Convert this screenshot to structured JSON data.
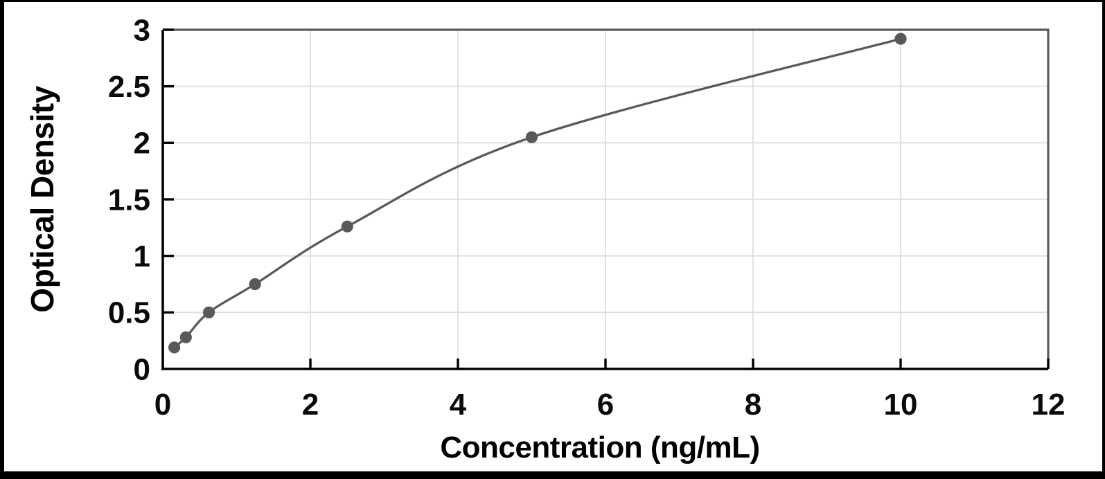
{
  "chart_data": {
    "type": "scatter",
    "title": "",
    "xlabel": "Concentration (ng/mL)",
    "ylabel": "Optical Density",
    "x": [
      0.156,
      0.313,
      0.625,
      1.25,
      2.5,
      5,
      10
    ],
    "y": [
      0.19,
      0.28,
      0.5,
      0.75,
      1.26,
      2.05,
      2.92
    ],
    "curve": "smooth-fit-through-points",
    "xlim": [
      0,
      12
    ],
    "ylim": [
      0,
      3
    ],
    "x_ticks": [
      0,
      2,
      4,
      6,
      8,
      10,
      12
    ],
    "x_tick_labels": [
      "0",
      "2",
      "4",
      "6",
      "8",
      "10",
      "12"
    ],
    "y_ticks": [
      0,
      0.5,
      1,
      1.5,
      2,
      2.5,
      3
    ],
    "y_tick_labels": [
      "0",
      "0.5",
      "1",
      "1.5",
      "2",
      "2.5",
      "3"
    ],
    "grid": true,
    "legend": "none",
    "colors": {
      "line": "#595959",
      "marker": "#595959",
      "grid": "#dedede",
      "plot_border": "#595959",
      "axis": "#000000",
      "text": "#000000",
      "frame": "#000000",
      "background": "#ffffff"
    }
  }
}
